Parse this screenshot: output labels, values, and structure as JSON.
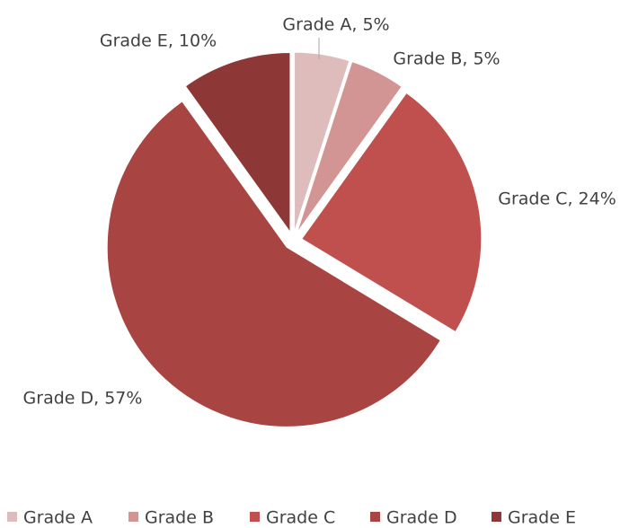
{
  "chart_data": {
    "type": "pie",
    "categories": [
      "Grade A",
      "Grade B",
      "Grade C",
      "Grade D",
      "Grade E"
    ],
    "values": [
      5,
      5,
      24,
      57,
      10
    ],
    "value_labels": [
      "Grade A, 5%",
      "Grade B, 5%",
      "Grade C, 24%",
      "Grade D, 57%",
      "Grade E, 10%"
    ],
    "colors": [
      "#dfbcbc",
      "#d39494",
      "#c0504d",
      "#a84442",
      "#8d3736"
    ],
    "legend": "bottom"
  }
}
